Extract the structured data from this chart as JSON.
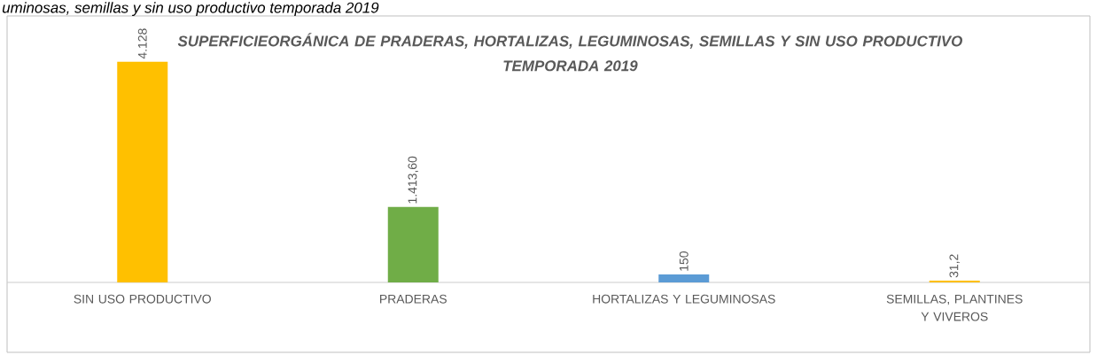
{
  "chart_data": {
    "type": "bar",
    "title": "SUPERFICIEORGÁNICA DE PRADERAS, HORTALIZAS, LEGUMINOSAS, SEMILLAS Y SIN USO PRODUCTIVO TEMPORADA 2019",
    "categories": [
      "SIN USO PRODUCTIVO",
      "PRADERAS",
      "HORTALIZAS Y LEGUMINOSAS",
      "SEMILLAS, PLANTINES Y VIVEROS"
    ],
    "values": [
      4128,
      1413.6,
      150,
      31.2
    ],
    "colors": [
      "#ffc000",
      "#70ad47",
      "#5b9bd5",
      "#ffc000"
    ],
    "value_labels": [
      "4.128",
      "1.413,60",
      "150",
      "31,2"
    ],
    "annotations": [
      "uminosas, semillas y sin uso productivo temporada 2019"
    ],
    "grid": false
  }
}
